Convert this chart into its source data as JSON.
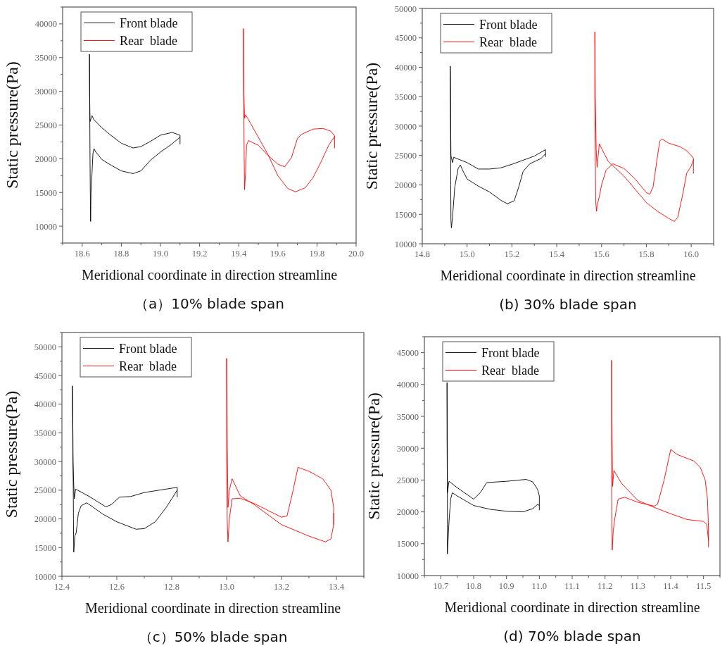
{
  "chart_data": [
    {
      "type": "line",
      "title": "（a）10% blade span",
      "xlabel": "Meridional coordinate in direction streamline",
      "ylabel": "Static pressure(Pa)",
      "xlim": [
        18.5,
        20.0
      ],
      "xticks": [
        {
          "value": 18.6,
          "label": "18.6"
        },
        {
          "value": 18.8,
          "label": "18.8"
        },
        {
          "value": 19.0,
          "label": "19.0"
        },
        {
          "value": 19.2,
          "label": "19.2"
        },
        {
          "value": 19.4,
          "label": "19.4"
        },
        {
          "value": 19.6,
          "label": "19.6"
        },
        {
          "value": 19.8,
          "label": "19.8"
        },
        {
          "value": 20.0,
          "label": "20.0"
        }
      ],
      "ylim": [
        7500,
        42500
      ],
      "yticks": [
        10000,
        15000,
        20000,
        25000,
        30000,
        35000,
        40000
      ],
      "legend": "top left",
      "grid": false,
      "line_style": "solid",
      "series": [
        {
          "name": "Front blade",
          "color": "#000000",
          "x": [
            19.1,
            19.1,
            19.06,
            19.0,
            18.95,
            18.9,
            18.86,
            18.8,
            18.75,
            18.7,
            18.66,
            18.65,
            18.64,
            18.638,
            18.637,
            18.638,
            18.64,
            18.642,
            18.643,
            18.645,
            18.65,
            18.655,
            18.66,
            18.67,
            18.7,
            18.75,
            18.8,
            18.86,
            18.9,
            18.95,
            19.0,
            19.05,
            19.1
          ],
          "values": [
            22200,
            23500,
            23900,
            23500,
            22600,
            21800,
            21600,
            22300,
            23400,
            24600,
            25800,
            26400,
            25500,
            30000,
            35500,
            30000,
            20000,
            13000,
            10700,
            15000,
            17800,
            20800,
            21500,
            21000,
            19900,
            19000,
            18200,
            17800,
            18200,
            19800,
            21000,
            22000,
            23200
          ]
        },
        {
          "name": "Rear  blade",
          "color": "#ff0000",
          "x": [
            19.89,
            19.89,
            19.87,
            19.83,
            19.78,
            19.72,
            19.7,
            19.67,
            19.635,
            19.6,
            19.55,
            19.5,
            19.45,
            19.44,
            19.435,
            19.43,
            19.428,
            19.425,
            19.424,
            19.426,
            19.43,
            19.435,
            19.45,
            19.5,
            19.55,
            19.6,
            19.65,
            19.69,
            19.74,
            19.78,
            19.82,
            19.86,
            19.89
          ],
          "values": [
            21600,
            23400,
            24100,
            24500,
            24400,
            23600,
            23000,
            20200,
            18800,
            19200,
            20500,
            22000,
            22700,
            22000,
            18000,
            15400,
            20000,
            30000,
            39300,
            30000,
            26000,
            26500,
            25800,
            23200,
            20600,
            17500,
            15600,
            15100,
            15700,
            17200,
            19500,
            22000,
            23300
          ]
        }
      ]
    },
    {
      "type": "line",
      "title": "(b) 30% blade span",
      "xlabel": "Meridional coordinate in direction streamline",
      "ylabel": "Static pressure(Pa)",
      "xlim": [
        14.8,
        16.1
      ],
      "xticks": [
        {
          "value": 14.8,
          "label": "14.8"
        },
        {
          "value": 15.0,
          "label": "15.0"
        },
        {
          "value": 15.2,
          "label": "15.2"
        },
        {
          "value": 15.4,
          "label": "15.4"
        },
        {
          "value": 15.6,
          "label": "15.6"
        },
        {
          "value": 15.8,
          "label": "15.8"
        },
        {
          "value": 16.0,
          "label": "16.0"
        }
      ],
      "ylim": [
        10000,
        50000
      ],
      "yticks": [
        10000,
        15000,
        20000,
        25000,
        30000,
        35000,
        40000,
        45000,
        50000
      ],
      "legend": "top left",
      "grid": false,
      "line_style": "solid",
      "series": [
        {
          "name": "Front blade",
          "color": "#000000",
          "x": [
            15.35,
            15.35,
            15.3,
            15.2,
            15.15,
            15.1,
            15.05,
            15.0,
            14.94,
            14.935,
            14.928,
            14.926,
            14.925,
            14.926,
            14.927,
            14.928,
            14.93,
            14.935,
            14.945,
            14.96,
            14.97,
            14.98,
            15.0,
            15.05,
            15.1,
            15.15,
            15.18,
            15.21,
            15.23,
            15.25,
            15.28,
            15.33,
            15.35
          ],
          "values": [
            24800,
            26000,
            24900,
            23500,
            22900,
            22700,
            22700,
            23800,
            24700,
            23800,
            25000,
            33000,
            40200,
            33000,
            20000,
            14000,
            12700,
            14500,
            19600,
            22800,
            23400,
            22500,
            21000,
            19800,
            18800,
            17400,
            16800,
            17300,
            19600,
            22300,
            23600,
            24500,
            25300
          ]
        },
        {
          "name": "Rear  blade",
          "color": "#ff0000",
          "x": [
            16.01,
            16.01,
            16.0,
            15.98,
            15.95,
            15.9,
            15.87,
            15.86,
            15.85,
            15.83,
            15.815,
            15.8,
            15.75,
            15.7,
            15.65,
            15.62,
            15.6,
            15.59,
            15.58,
            15.578,
            15.574,
            15.572,
            15.57,
            15.57,
            15.572,
            15.576,
            15.58,
            15.59,
            15.6,
            15.63,
            15.7,
            15.8,
            15.85,
            15.9,
            15.925,
            15.94,
            15.96,
            15.98,
            16.0,
            16.01
          ],
          "values": [
            22000,
            24500,
            25000,
            25800,
            26500,
            27100,
            27800,
            27500,
            25000,
            19700,
            18400,
            18700,
            21000,
            22800,
            23600,
            22500,
            20000,
            18000,
            16500,
            15500,
            17000,
            25000,
            35000,
            46000,
            35000,
            26000,
            23000,
            27000,
            26200,
            24000,
            21500,
            17000,
            15500,
            14300,
            13800,
            14500,
            18000,
            22000,
            23200,
            24300
          ]
        }
      ]
    },
    {
      "type": "line",
      "title": "（c）50% blade span",
      "xlabel": "Meridional coordinate in direction streamline",
      "ylabel": "Static pressure(Pa)",
      "xlim": [
        12.4,
        13.5
      ],
      "xticks": [
        {
          "value": 12.4,
          "label": "12.4"
        },
        {
          "value": 12.6,
          "label": "12.6"
        },
        {
          "value": 12.8,
          "label": "12.8"
        },
        {
          "value": 13.0,
          "label": "13.0"
        },
        {
          "value": 13.2,
          "label": "13.2"
        },
        {
          "value": 13.4,
          "label": "13.4"
        }
      ],
      "ylim": [
        10000,
        52500
      ],
      "yticks": [
        10000,
        15000,
        20000,
        25000,
        30000,
        35000,
        40000,
        45000,
        50000
      ],
      "legend": "top left",
      "grid": false,
      "line_style": "solid",
      "series": [
        {
          "name": "Front blade",
          "color": "#000000",
          "x": [
            12.82,
            12.82,
            12.78,
            12.7,
            12.65,
            12.61,
            12.58,
            12.56,
            12.5,
            12.45,
            12.445,
            12.44,
            12.438,
            12.44,
            12.442,
            12.443,
            12.447,
            12.452,
            12.46,
            12.47,
            12.49,
            12.5,
            12.55,
            12.6,
            12.67,
            12.7,
            12.74,
            12.78,
            12.82
          ],
          "values": [
            23800,
            25500,
            25200,
            24600,
            23900,
            23800,
            22500,
            22100,
            23900,
            25200,
            23500,
            30000,
            43200,
            35000,
            20000,
            14200,
            17000,
            17600,
            21000,
            22300,
            22800,
            22500,
            20800,
            19500,
            18200,
            18300,
            19500,
            22000,
            25000
          ]
        },
        {
          "name": "Rear  blade",
          "color": "#ff0000",
          "x": [
            13.39,
            13.39,
            13.38,
            13.35,
            13.3,
            13.26,
            13.24,
            13.22,
            13.2,
            13.1,
            13.05,
            13.02,
            13.01,
            13.005,
            13.002,
            13.0,
            13.0,
            13.002,
            13.005,
            13.01,
            13.02,
            13.05,
            13.1,
            13.2,
            13.3,
            13.36,
            13.38,
            13.39,
            13.39
          ],
          "values": [
            19000,
            22000,
            25000,
            27000,
            28300,
            29000,
            24500,
            20500,
            20300,
            22700,
            23600,
            23500,
            20000,
            16000,
            20000,
            30000,
            48000,
            35000,
            22000,
            25000,
            27000,
            24000,
            22500,
            19000,
            17000,
            16000,
            16500,
            19000,
            21000
          ]
        }
      ]
    },
    {
      "type": "line",
      "title": "(d) 70% blade span",
      "xlabel": "Meridional coordinate in direction streamline",
      "ylabel": "Static pressure(Pa)",
      "xlim": [
        10.65,
        11.55
      ],
      "xticks": [
        {
          "value": 10.7,
          "label": "10.7"
        },
        {
          "value": 10.8,
          "label": "10.8"
        },
        {
          "value": 10.9,
          "label": "10.9"
        },
        {
          "value": 11.0,
          "label": "11.0"
        },
        {
          "value": 11.1,
          "label": "11.1"
        },
        {
          "value": 11.2,
          "label": "11.2"
        },
        {
          "value": 11.3,
          "label": "11.3"
        },
        {
          "value": 11.4,
          "label": "11.4"
        },
        {
          "value": 11.5,
          "label": "11.5"
        }
      ],
      "ylim": [
        10000,
        47500
      ],
      "yticks": [
        10000,
        15000,
        20000,
        25000,
        30000,
        35000,
        40000,
        45000
      ],
      "legend": "top left",
      "grid": false,
      "line_style": "solid",
      "series": [
        {
          "name": "Front blade",
          "color": "#000000",
          "x": [
            11.0,
            11.0,
            10.995,
            10.98,
            10.96,
            10.9,
            10.84,
            10.82,
            10.8,
            10.75,
            10.725,
            10.72,
            10.719,
            10.719,
            10.72,
            10.72,
            10.72,
            10.725,
            10.73,
            10.735,
            10.75,
            10.8,
            10.85,
            10.9,
            10.95,
            10.98,
            10.995,
            11.0
          ],
          "values": [
            20300,
            22500,
            23500,
            24700,
            25100,
            24800,
            24600,
            23000,
            22000,
            23800,
            24800,
            23000,
            32000,
            40300,
            30000,
            18000,
            13400,
            18500,
            22000,
            23000,
            22500,
            21000,
            20400,
            20100,
            20000,
            20500,
            21200,
            21000
          ]
        },
        {
          "name": "Rear  blade",
          "color": "#ff0000",
          "x": [
            11.515,
            11.515,
            11.512,
            11.505,
            11.49,
            11.47,
            11.42,
            11.4,
            11.38,
            11.36,
            11.35,
            11.3,
            11.26,
            11.24,
            11.23,
            11.225,
            11.222,
            11.221,
            11.22,
            11.22,
            11.221,
            11.223,
            11.227,
            11.25,
            11.3,
            11.35,
            11.4,
            11.45,
            11.5,
            11.51,
            11.515
          ],
          "values": [
            14500,
            17500,
            22000,
            25000,
            27000,
            28000,
            29000,
            29800,
            25000,
            21200,
            20900,
            21500,
            22300,
            22000,
            19000,
            17000,
            14000,
            20000,
            30000,
            43800,
            35000,
            24000,
            26500,
            24500,
            21800,
            20700,
            19700,
            18800,
            18500,
            18000,
            15500
          ]
        }
      ]
    }
  ]
}
